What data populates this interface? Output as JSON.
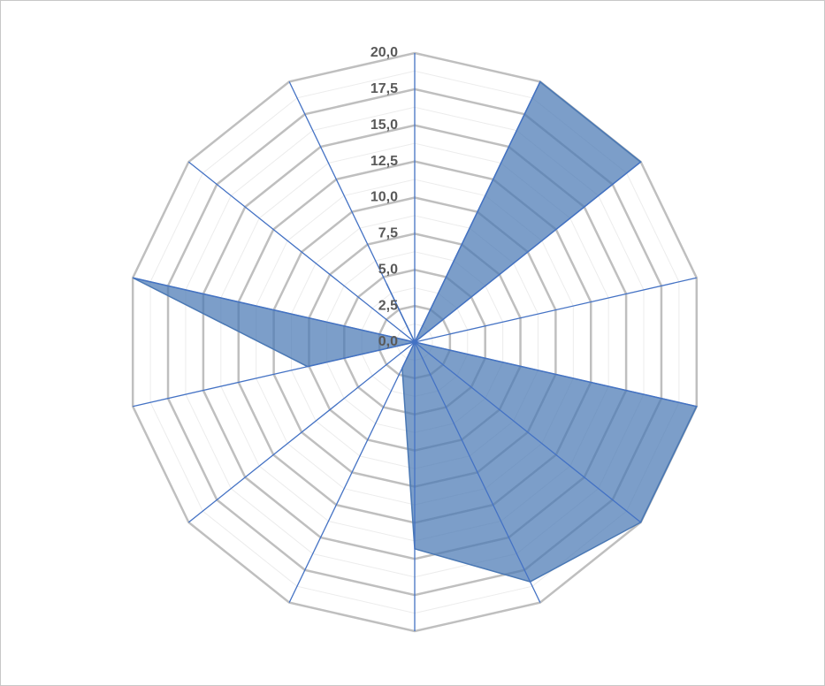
{
  "chart_data": {
    "type": "radar",
    "values": [
      0,
      20,
      20,
      0,
      20,
      20,
      18.4,
      14.3,
      2,
      0,
      7.6,
      20,
      0,
      4.5
    ],
    "color": "#4a78b4",
    "ylim": [
      0,
      20
    ],
    "yticks": [
      {
        "value": 0,
        "label": "0,0"
      },
      {
        "value": 2.5,
        "label": "2,5"
      },
      {
        "value": 5,
        "label": "5,0"
      },
      {
        "value": 7.5,
        "label": "7,5"
      },
      {
        "value": 10,
        "label": "10,0"
      },
      {
        "value": 12.5,
        "label": "12,5"
      },
      {
        "value": 15,
        "label": "15,0"
      },
      {
        "value": 17.5,
        "label": "17,5"
      },
      {
        "value": 20,
        "label": "20,0"
      }
    ],
    "grid": true
  }
}
